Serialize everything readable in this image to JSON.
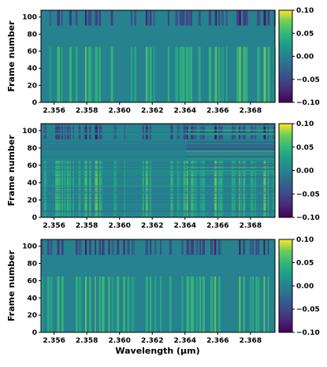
{
  "chart_data": [
    {
      "type": "heatmap",
      "title": "",
      "xlabel": "",
      "ylabel": "Frame number",
      "xlim": [
        2.3552,
        2.3695
      ],
      "ylim": [
        0,
        108
      ],
      "xticks": [
        "2.356",
        "2.358",
        "2.360",
        "2.362",
        "2.364",
        "2.366",
        "2.368"
      ],
      "xtick_values": [
        2.356,
        2.358,
        2.36,
        2.362,
        2.364,
        2.366,
        2.368
      ],
      "yticks": [
        "0",
        "20",
        "40",
        "60",
        "80",
        "100"
      ],
      "ytick_values": [
        0,
        20,
        40,
        60,
        80,
        100
      ],
      "colorbar": {
        "range": [
          -0.1,
          0.1
        ],
        "ticks": [
          "0.10",
          "0.05",
          "0.00",
          "−0.05",
          "−0.10"
        ],
        "tick_values": [
          0.1,
          0.05,
          0.0,
          -0.05,
          -0.1
        ],
        "colormap": "viridis"
      },
      "strong_lines": [
        2.3562,
        2.3579,
        2.3585,
        2.3616,
        2.3641,
        2.3658,
        2.3673,
        2.3688
      ],
      "horizontal_striping": false
    },
    {
      "type": "heatmap",
      "title": "",
      "xlabel": "",
      "ylabel": "Frame number",
      "xlim": [
        2.3552,
        2.3695
      ],
      "ylim": [
        0,
        108
      ],
      "xticks": [
        "2.356",
        "2.358",
        "2.360",
        "2.362",
        "2.364",
        "2.366",
        "2.368"
      ],
      "xtick_values": [
        2.356,
        2.358,
        2.36,
        2.362,
        2.364,
        2.366,
        2.368
      ],
      "yticks": [
        "0",
        "20",
        "40",
        "60",
        "80",
        "100"
      ],
      "ytick_values": [
        0,
        20,
        40,
        60,
        80,
        100
      ],
      "colorbar": {
        "range": [
          -0.1,
          0.1
        ],
        "ticks": [
          "0.10",
          "0.05",
          "0.00",
          "−0.05",
          "−0.10"
        ],
        "tick_values": [
          0.1,
          0.05,
          0.0,
          -0.05,
          -0.1
        ],
        "colormap": "viridis"
      },
      "strong_lines": [
        2.3562,
        2.3579,
        2.3585,
        2.3616,
        2.3641,
        2.3658,
        2.3673,
        2.3688
      ],
      "horizontal_striping": true
    },
    {
      "type": "heatmap",
      "title": "",
      "xlabel": "Wavelength (μm)",
      "ylabel": "Frame number",
      "xlim": [
        2.3552,
        2.3695
      ],
      "ylim": [
        0,
        108
      ],
      "xticks": [
        "2.356",
        "2.358",
        "2.360",
        "2.362",
        "2.364",
        "2.366",
        "2.368"
      ],
      "xtick_values": [
        2.356,
        2.358,
        2.36,
        2.362,
        2.364,
        2.366,
        2.368
      ],
      "yticks": [
        "0",
        "20",
        "40",
        "60",
        "80",
        "100"
      ],
      "ytick_values": [
        0,
        20,
        40,
        60,
        80,
        100
      ],
      "colorbar": {
        "range": [
          -0.1,
          0.1
        ],
        "ticks": [
          "0.10",
          "0.05",
          "0.00",
          "−0.05",
          "−0.10"
        ],
        "tick_values": [
          0.1,
          0.05,
          0.0,
          -0.05,
          -0.1
        ],
        "colormap": "viridis"
      },
      "strong_lines": [
        2.3562,
        2.3579,
        2.3585,
        2.3616,
        2.3641,
        2.3658,
        2.3673,
        2.3688
      ],
      "horizontal_striping": false
    }
  ]
}
